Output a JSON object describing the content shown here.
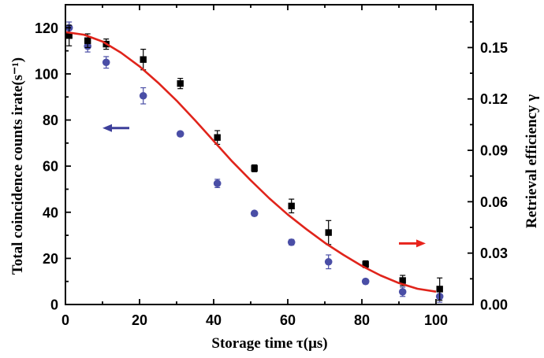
{
  "chart_data": {
    "type": "scatter",
    "xlabel": "Storage time τ(μs)",
    "ylabel_left": "Total coincidence counts irate(s⁻¹)",
    "ylabel_right": "Retrieval efficiency γ",
    "xlim": [
      0,
      110
    ],
    "ylim_left": [
      0,
      130
    ],
    "ylim_right": [
      0,
      0.175
    ],
    "x_ticks": [
      0,
      20,
      40,
      60,
      80,
      100
    ],
    "y_left_ticks": [
      0,
      20,
      40,
      60,
      80,
      100,
      120
    ],
    "y_right_ticks": [
      0.0,
      0.03,
      0.06,
      0.09,
      0.12,
      0.15
    ],
    "y_right_tick_labels": [
      "0.00",
      "0.03",
      "0.06",
      "0.09",
      "0.12",
      "0.15"
    ],
    "series": [
      {
        "axis": "left",
        "marker": "circle",
        "color": "#4a4ea6",
        "x": [
          1,
          6,
          11,
          21,
          31,
          41,
          51,
          61,
          71,
          81,
          91,
          101
        ],
        "y": [
          120,
          112,
          105,
          90.5,
          74,
          52.5,
          39.5,
          27,
          18.5,
          10,
          5.5,
          3.5
        ],
        "err": [
          2.5,
          2.5,
          2.5,
          3.5,
          1.0,
          1.8,
          1.0,
          1.2,
          3.0,
          1.0,
          2.0,
          2.5
        ]
      },
      {
        "axis": "right",
        "marker": "square",
        "color": "#000000",
        "x": [
          1,
          6,
          11,
          21,
          31,
          41,
          51,
          61,
          71,
          81,
          91,
          101
        ],
        "y": [
          0.157,
          0.154,
          0.152,
          0.143,
          0.129,
          0.0975,
          0.0795,
          0.0575,
          0.042,
          0.0235,
          0.014,
          0.009
        ],
        "err": [
          0.006,
          0.004,
          0.003,
          0.006,
          0.003,
          0.004,
          0.002,
          0.004,
          0.007,
          0.002,
          0.003,
          0.0065
        ]
      },
      {
        "axis": "right",
        "type": "line",
        "color": "#e0241b",
        "x": [
          0,
          5,
          10,
          15,
          20,
          25,
          30,
          35,
          40,
          45,
          50,
          55,
          60,
          65,
          70,
          75,
          80,
          85,
          90,
          95,
          100
        ],
        "y": [
          0.159,
          0.1575,
          0.1535,
          0.147,
          0.139,
          0.1295,
          0.119,
          0.1075,
          0.0955,
          0.0835,
          0.0725,
          0.062,
          0.0525,
          0.044,
          0.036,
          0.029,
          0.0225,
          0.017,
          0.0125,
          0.0092,
          0.0075
        ]
      }
    ],
    "annotations": [
      {
        "kind": "arrow",
        "direction": "left",
        "color": "#3d3f9a",
        "x": 10,
        "y_left": 76.5
      },
      {
        "kind": "arrow",
        "direction": "right",
        "color": "#e8231c",
        "x": 90,
        "y_left": 26.5
      }
    ]
  }
}
